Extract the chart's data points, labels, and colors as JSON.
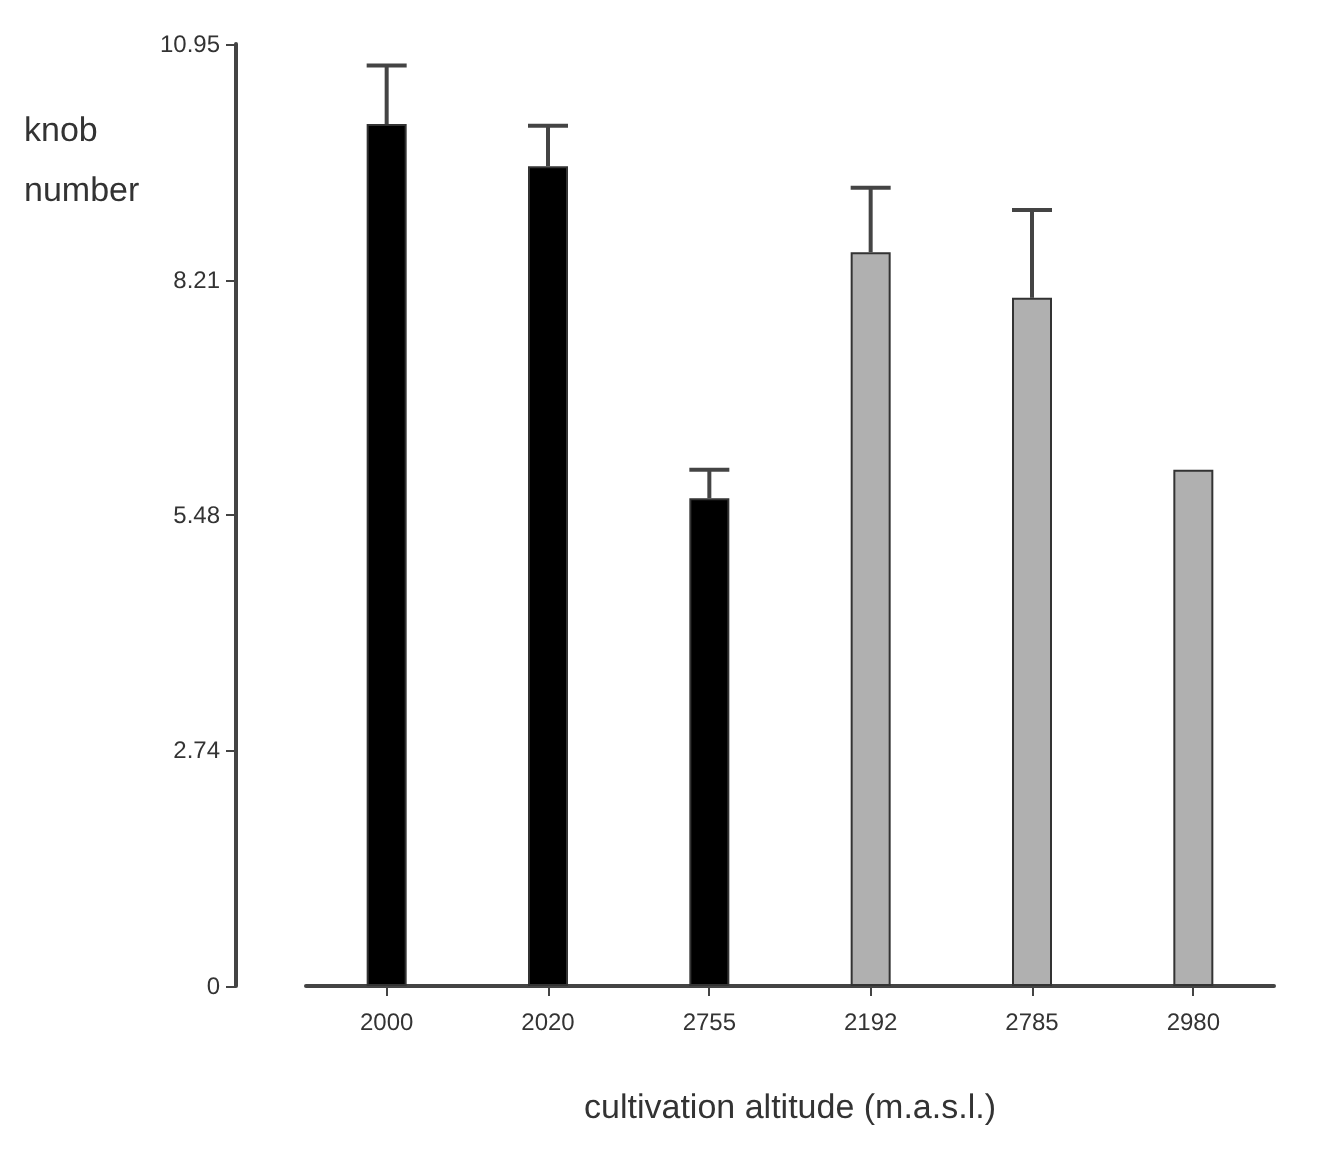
{
  "chart_data": {
    "type": "bar",
    "xlabel": "cultivation altitude (m.a.s.l.)",
    "ylabel": "knob number",
    "categories": [
      "2000",
      "2020",
      "2755",
      "2192",
      "2785",
      "2980"
    ],
    "values": [
      10.02,
      9.53,
      5.67,
      8.53,
      8.0,
      6.0
    ],
    "colors": [
      "#000000",
      "#000000",
      "#000000",
      "#b0b0b0",
      "#b0b0b0",
      "#b0b0b0"
    ],
    "errors": [
      [
        10.02,
        10.7
      ],
      [
        9.53,
        10.0
      ],
      [
        5.67,
        6.0
      ],
      [
        8.53,
        9.28
      ],
      [
        8.0,
        9.02
      ],
      null
    ],
    "ylim": [
      0,
      10.95
    ],
    "yticks": [
      0,
      2.74,
      5.48,
      8.21,
      10.95
    ],
    "grid": false
  }
}
